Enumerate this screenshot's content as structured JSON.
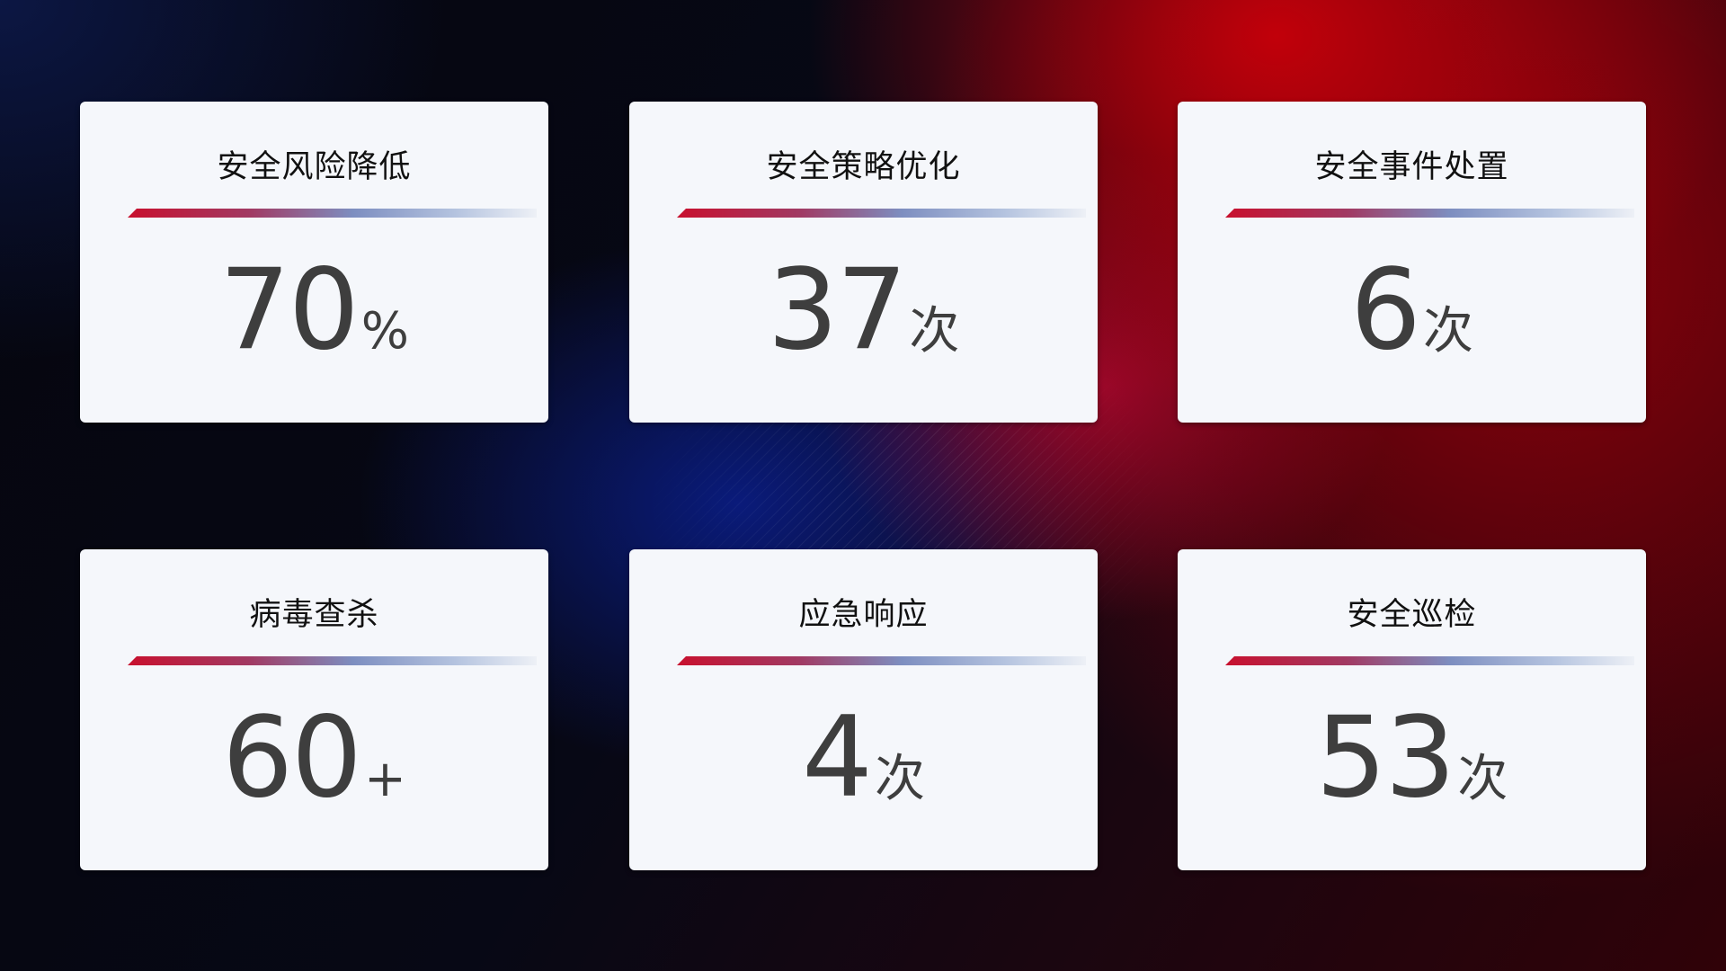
{
  "cards": [
    {
      "title": "安全风险降低",
      "value": "70",
      "unit": "%"
    },
    {
      "title": "安全策略优化",
      "value": "37",
      "unit": "次"
    },
    {
      "title": "安全事件处置",
      "value": "6",
      "unit": "次"
    },
    {
      "title": "病毒查杀",
      "value": "60",
      "unit": "+"
    },
    {
      "title": "应急响应",
      "value": "4",
      "unit": "次"
    },
    {
      "title": "安全巡检",
      "value": "53",
      "unit": "次"
    }
  ],
  "colors": {
    "accent_red": "#c8102e",
    "accent_blue": "#7d8ec0",
    "card_bg": "#f5f7fb",
    "value_text": "#3e3e3e"
  }
}
